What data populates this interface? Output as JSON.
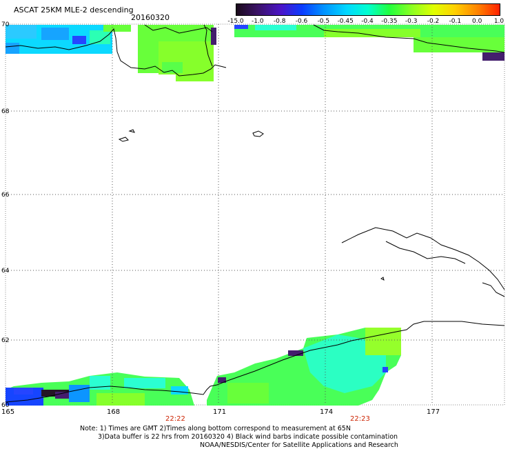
{
  "header": {
    "title": "ASCAT 25KM MLE-2 descending",
    "date": "20160320"
  },
  "colorbar": {
    "labels": [
      "-15.0",
      "-1.0",
      "-0.8",
      "-0.6",
      "-0.5",
      "-0.45",
      "-0.4",
      "-0.35",
      "-0.3",
      "-0.2",
      "-0.1",
      "0.0",
      "1.0"
    ],
    "colors": [
      "#1a0a1a",
      "#3a1266",
      "#4a14c8",
      "#0a3cff",
      "#0090ff",
      "#00d8ff",
      "#00ffd0",
      "#20ff40",
      "#90ff20",
      "#e0ff00",
      "#ffd000",
      "#ff8000",
      "#ff2000"
    ]
  },
  "axes": {
    "x_ticks": [
      "165",
      "168",
      "171",
      "174",
      "177"
    ],
    "y_ticks": [
      "70",
      "68",
      "66",
      "64",
      "62",
      "60"
    ],
    "times": [
      "22:22",
      "22:23"
    ]
  },
  "notes": {
    "line1": "Note: 1) Times are GMT 2)Times along bottom correspond to measurement at 65N",
    "line2": "3)Data buffer is 22 hrs from 20160320 4) Black wind barbs indicate possible contamination",
    "line3": "NOAA/NESDIS/Center for Satellite Applications and Research"
  }
}
